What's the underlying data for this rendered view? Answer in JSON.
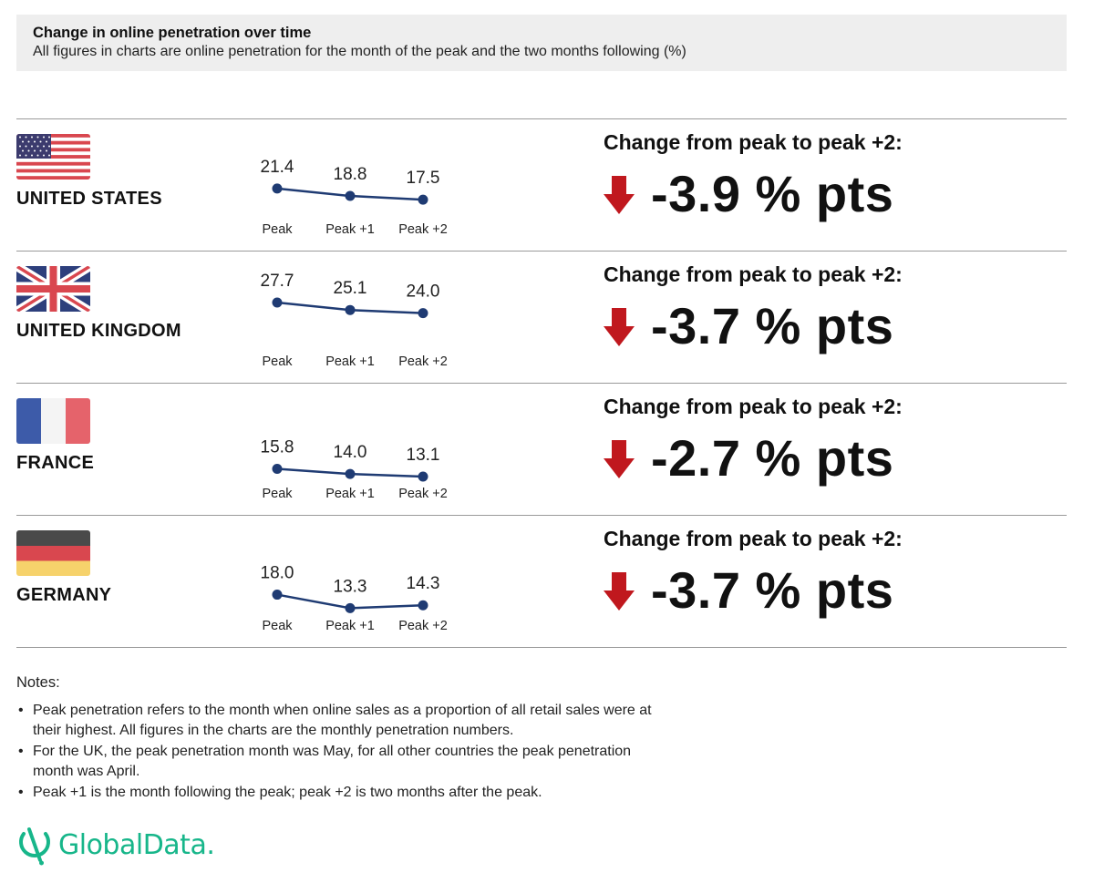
{
  "header": {
    "title": "Change in online penetration over time",
    "subtitle": "All figures in charts are online penetration for the month of the peak and the two months following (%)"
  },
  "colors": {
    "line": "#1f3b73",
    "arrow": "#c0181e",
    "header_bg": "#eeeeee",
    "logo": "#17b68a"
  },
  "chart_data": [
    {
      "type": "line",
      "country": "UNITED STATES",
      "flag_icon": "us-flag-icon",
      "categories": [
        "Peak",
        "Peak +1",
        "Peak +2"
      ],
      "values": [
        21.4,
        18.8,
        17.5
      ],
      "value_labels": [
        "21.4",
        "18.8",
        "17.5"
      ],
      "change_label": "Change from peak to peak +2:",
      "change_value": "-3.9 % pts",
      "change_direction": "down"
    },
    {
      "type": "line",
      "country": "UNITED KINGDOM",
      "flag_icon": "uk-flag-icon",
      "categories": [
        "Peak",
        "Peak +1",
        "Peak +2"
      ],
      "values": [
        27.7,
        25.1,
        24.0
      ],
      "value_labels": [
        "27.7",
        "25.1",
        "24.0"
      ],
      "change_label": "Change from peak to peak +2:",
      "change_value": "-3.7 % pts",
      "change_direction": "down"
    },
    {
      "type": "line",
      "country": "FRANCE",
      "flag_icon": "france-flag-icon",
      "categories": [
        "Peak",
        "Peak +1",
        "Peak +2"
      ],
      "values": [
        15.8,
        14.0,
        13.1
      ],
      "value_labels": [
        "15.8",
        "14.0",
        "13.1"
      ],
      "change_label": "Change from peak to peak +2:",
      "change_value": "-2.7 % pts",
      "change_direction": "down"
    },
    {
      "type": "line",
      "country": "GERMANY",
      "flag_icon": "germany-flag-icon",
      "categories": [
        "Peak",
        "Peak +1",
        "Peak +2"
      ],
      "values": [
        18.0,
        13.3,
        14.3
      ],
      "value_labels": [
        "18.0",
        "13.3",
        "14.3"
      ],
      "change_label": "Change from peak to peak +2:",
      "change_value": "-3.7 % pts",
      "change_direction": "down"
    }
  ],
  "notes": {
    "heading": "Notes:",
    "items": [
      "Peak penetration refers to the month when online sales as a proportion of all retail sales were at their highest. All figures in the charts are the monthly penetration numbers.",
      "For the UK, the peak penetration month was May, for all other countries the peak penetration month was April.",
      "Peak +1 is the month following the peak; peak +2 is two months after the peak."
    ]
  },
  "logo": {
    "text": "GlobalData.",
    "icon": "globaldata-logo-icon"
  }
}
